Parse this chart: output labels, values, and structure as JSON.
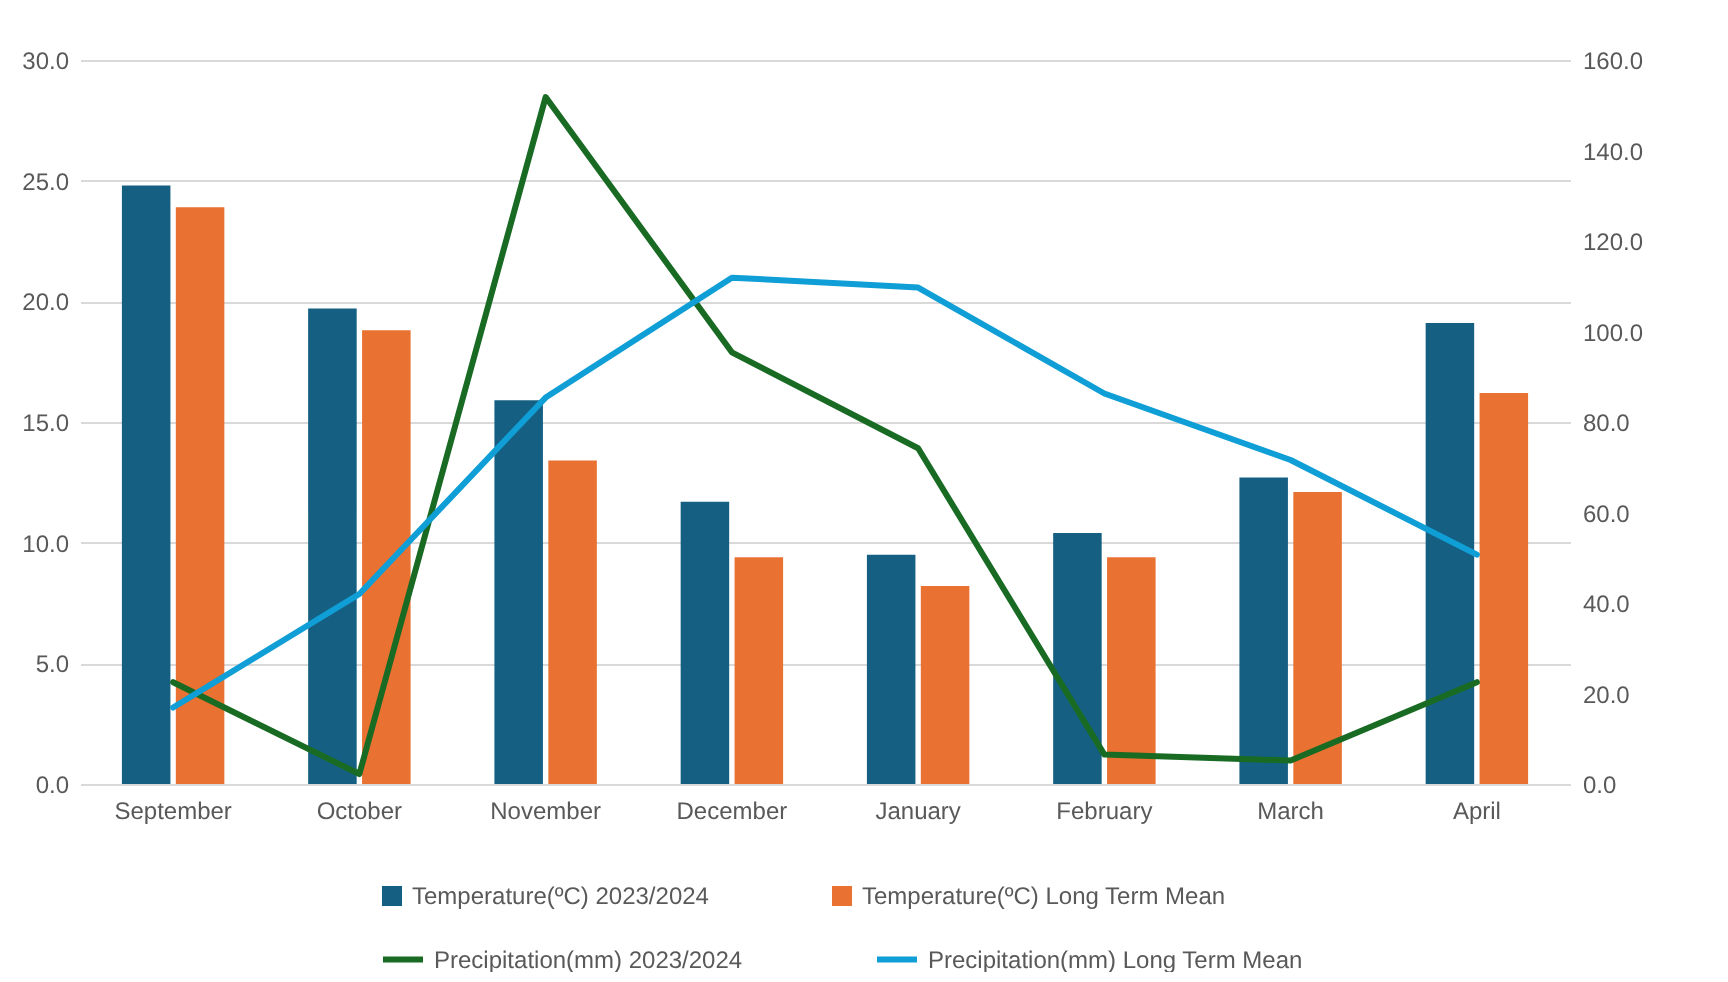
{
  "chart_data": {
    "type": "bar",
    "categories": [
      "September",
      "October",
      "November",
      "December",
      "January",
      "February",
      "March",
      "April"
    ],
    "series": [
      {
        "name": "Temperature(ºC) 2023/2024",
        "color": "#156082",
        "values": [
          24.8,
          19.7,
          15.9,
          11.7,
          9.5,
          10.4,
          12.7,
          19.1
        ]
      },
      {
        "name": "Temperature(ºC) Long Term Mean",
        "color": "#e97132",
        "values": [
          23.9,
          18.8,
          13.4,
          9.4,
          8.2,
          9.4,
          12.1,
          16.2
        ]
      },
      {
        "name": "Precipitation(mm) 2023/2024",
        "type": "line",
        "axis": "y2",
        "color": "#196b24",
        "values": [
          22.5,
          2.2,
          151.8,
          95.4,
          74.2,
          6.5,
          5.2,
          22.5
        ]
      },
      {
        "name": "Precipitation(mm) Long Term Mean",
        "type": "line",
        "axis": "y2",
        "color": "#0f9ed5",
        "values": [
          16.9,
          42.0,
          85.4,
          111.9,
          109.7,
          86.3,
          71.6,
          50.7
        ]
      }
    ],
    "ylim": [
      0,
      30
    ],
    "yticks": [
      {
        "value": 0,
        "label": "0.0"
      },
      {
        "value": 5,
        "label": "5.0"
      },
      {
        "value": 10,
        "label": "10.0"
      },
      {
        "value": 15,
        "label": "15.0"
      },
      {
        "value": 20,
        "label": "20.0"
      },
      {
        "value": 25,
        "label": "25.0"
      },
      {
        "value": 30,
        "label": "30.0"
      }
    ],
    "y2lim": [
      0,
      160
    ],
    "y2ticks": [
      {
        "value": 0,
        "label": "0.0"
      },
      {
        "value": 20,
        "label": "20.0"
      },
      {
        "value": 40,
        "label": "40.0"
      },
      {
        "value": 60,
        "label": "60.0"
      },
      {
        "value": 80,
        "label": "80.0"
      },
      {
        "value": 100,
        "label": "100.0"
      },
      {
        "value": 120,
        "label": "120.0"
      },
      {
        "value": 140,
        "label": "140.0"
      },
      {
        "value": 160,
        "label": "160.0"
      }
    ],
    "grid": "y",
    "legend": "bottom",
    "line_style": "solid"
  }
}
